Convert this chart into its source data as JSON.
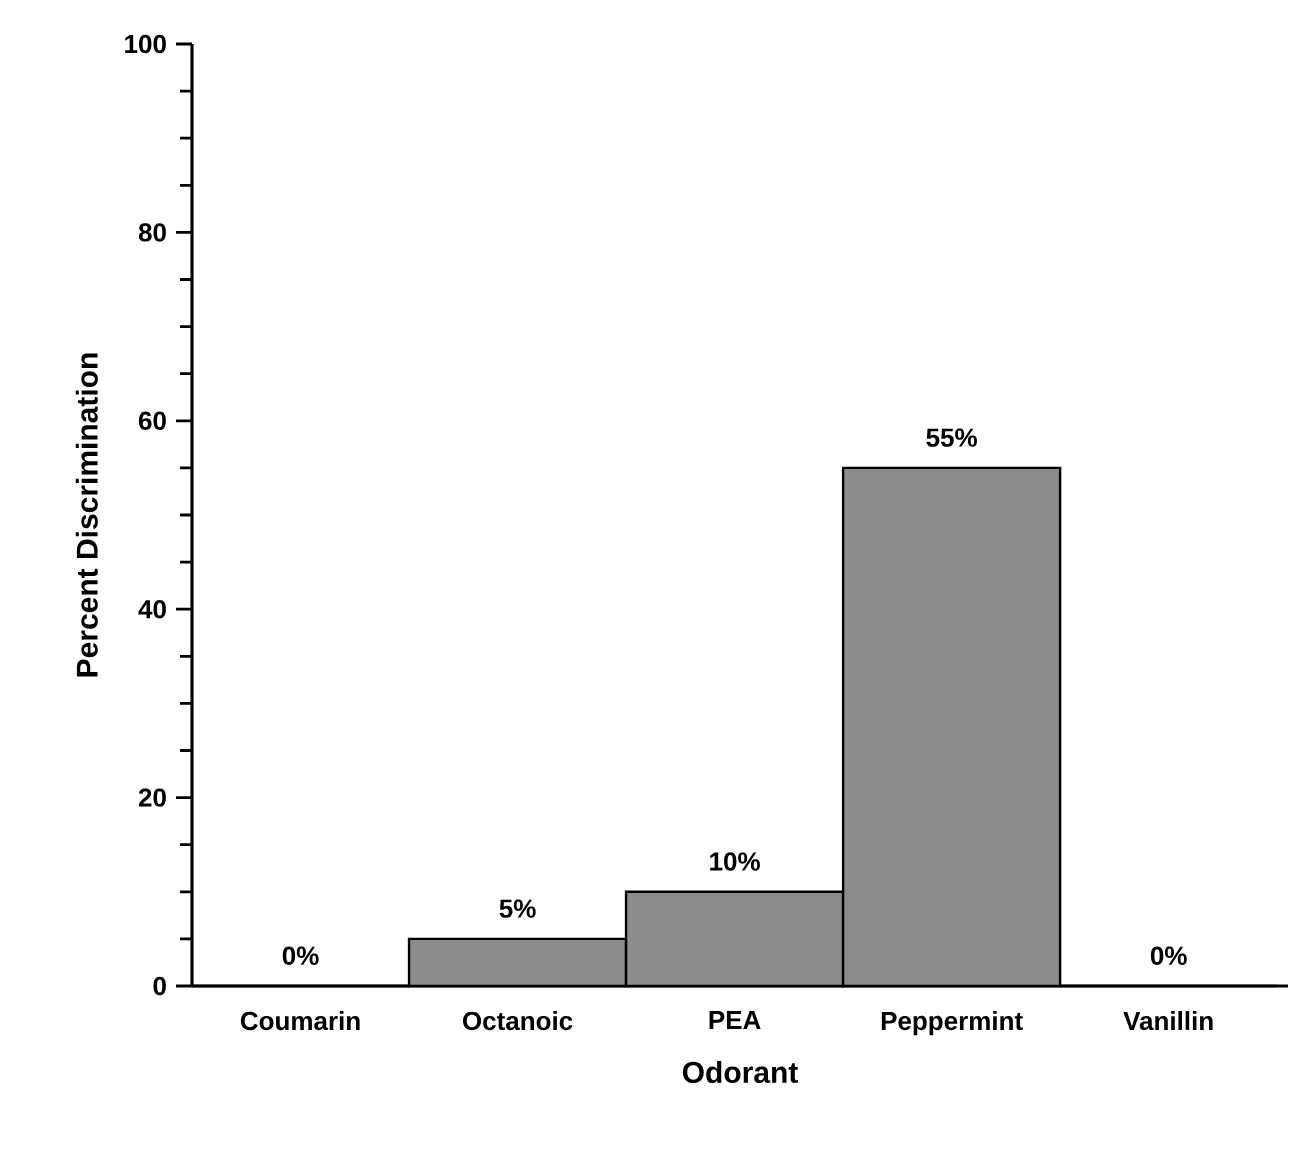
{
  "chart_data": {
    "type": "bar",
    "xlabel": "Odorant",
    "ylabel": "Percent Discrimination",
    "categories": [
      "Coumarin",
      "Octanoic",
      "PEA",
      "Peppermint",
      "Vanillin"
    ],
    "values": [
      0,
      5,
      10,
      55,
      0
    ],
    "value_labels": [
      "0%",
      "5%",
      "10%",
      "55%",
      "0%"
    ],
    "color": "#000000",
    "ylim": [
      0,
      100
    ],
    "yticks": [
      0,
      20,
      40,
      60,
      80,
      100
    ]
  }
}
